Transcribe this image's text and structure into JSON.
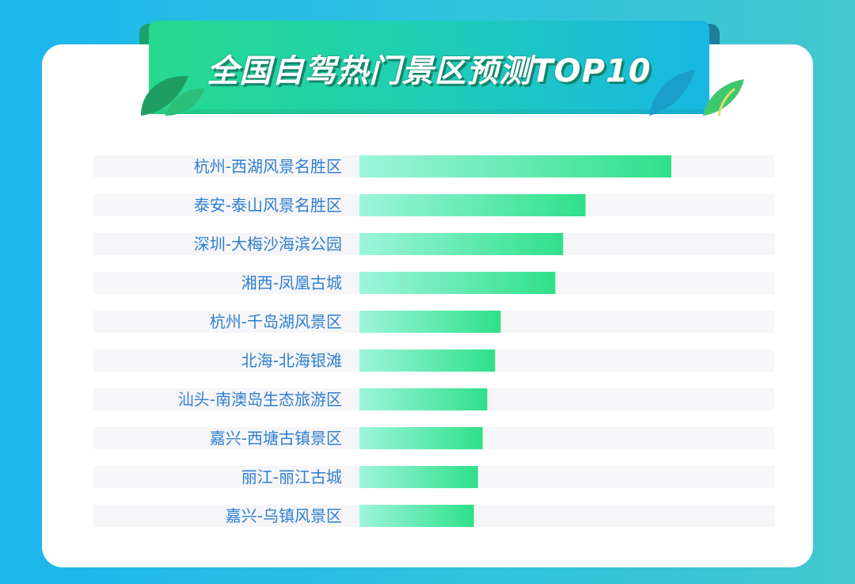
{
  "title": "全国自驾热门景区预测TOP10",
  "colors": {
    "bar_start": "#9ef5dc",
    "bar_end": "#2fe08a",
    "track": "#f6f6f8",
    "label": "#2e7fd0"
  },
  "chart_data": {
    "type": "bar",
    "orientation": "horizontal",
    "title": "全国自驾热门景区预测TOP10",
    "categories": [
      "杭州-西湖风景名胜区",
      "泰安-泰山风景名胜区",
      "深圳-大梅沙海滨公园",
      "湘西-凤凰古城",
      "杭州-千岛湖风景区",
      "北海-北海银滩",
      "汕头-南澳岛生态旅游区",
      "嘉兴-西塘古镇景区",
      "丽江-丽江古城",
      "嘉兴-乌镇风景区"
    ],
    "values": [
      100,
      72.5,
      65.3,
      62.8,
      45.3,
      43.5,
      41.0,
      39.5,
      38.0,
      36.7
    ],
    "xlim": [
      0,
      100
    ],
    "grid": false,
    "legend": "none"
  }
}
